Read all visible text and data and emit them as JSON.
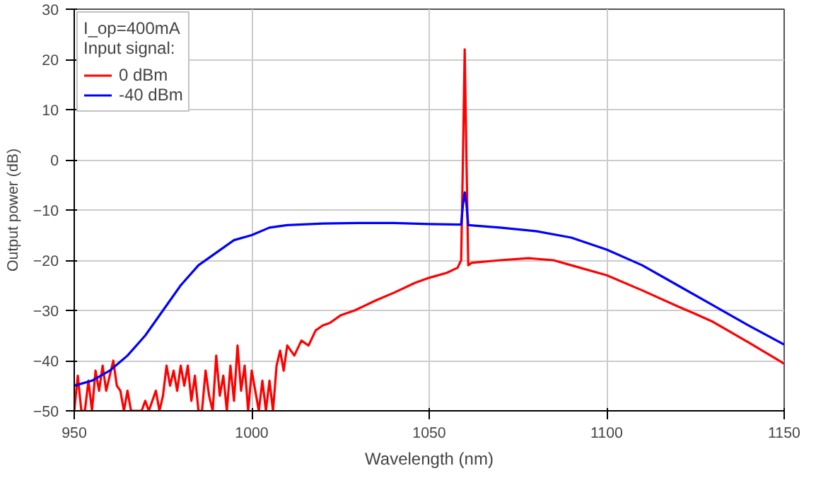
{
  "chart_data": {
    "type": "line",
    "xlabel": "Wavelength (nm)",
    "ylabel": "Output power (dB)",
    "legend_title": "I_op=400mA\nInput signal:",
    "xlim": [
      950,
      1150
    ],
    "xticks": [
      950,
      1000,
      1050,
      1100,
      1150
    ],
    "ylim": [
      -50,
      30
    ],
    "yticks": [
      -50,
      -40,
      -30,
      -20,
      -10,
      0,
      10,
      20,
      30
    ],
    "grid": true,
    "legend": "top left",
    "marker": "none",
    "line_style": "solid",
    "series": [
      {
        "name": "0 dBm",
        "color": "#ff0000",
        "x": [
          950,
          951,
          952,
          953,
          954,
          955,
          956,
          957,
          958,
          959,
          960,
          961,
          962,
          963,
          964,
          965,
          966,
          969,
          970,
          971,
          973,
          974,
          975,
          976,
          977,
          978,
          979,
          980,
          981,
          982,
          983,
          984,
          985,
          986,
          987,
          988,
          989,
          990,
          991,
          992,
          993,
          994,
          995,
          996,
          997,
          998,
          999,
          1000,
          1001,
          1002,
          1003,
          1004,
          1005,
          1006,
          1007,
          1008,
          1009,
          1010,
          1012,
          1014,
          1016,
          1018,
          1020,
          1022,
          1025,
          1029,
          1035,
          1040,
          1046,
          1050,
          1055,
          1058,
          1059,
          1059.5,
          1060,
          1060.5,
          1061,
          1062,
          1070,
          1078,
          1085,
          1090,
          1100,
          1110,
          1120,
          1125,
          1130,
          1140,
          1150
        ],
        "values": [
          -50,
          -43,
          -50,
          -50,
          -44,
          -50,
          -42,
          -46,
          -41,
          -46,
          -43,
          -40,
          -45,
          -46,
          -50,
          -46,
          -50,
          -50,
          -48,
          -50,
          -46,
          -50,
          -47,
          -41,
          -45,
          -42,
          -46,
          -41,
          -45,
          -41,
          -48,
          -43,
          -50,
          -50,
          -42,
          -47,
          -50,
          -39,
          -47,
          -43,
          -50,
          -41,
          -48,
          -37,
          -46,
          -41,
          -50,
          -42,
          -46,
          -50,
          -44,
          -50,
          -44,
          -50,
          -41,
          -38,
          -42,
          -37,
          -39,
          -36,
          -37,
          -34,
          -33,
          -32.5,
          -31,
          -30,
          -28,
          -26.5,
          -24.5,
          -23.5,
          -22.5,
          -21.5,
          -20,
          0,
          22,
          0,
          -21,
          -20.5,
          -20,
          -19.6,
          -20,
          -21,
          -23,
          -26,
          -29.2,
          -30.7,
          -32.3,
          -36.4,
          -40.6
        ]
      },
      {
        "name": "-40 dBm",
        "color": "#0000ff",
        "x": [
          950,
          955,
          960,
          965,
          970,
          975,
          980,
          985,
          990,
          995,
          1000,
          1005,
          1010,
          1020,
          1030,
          1040,
          1050,
          1059,
          1059.5,
          1060,
          1060.5,
          1061,
          1070,
          1080,
          1090,
          1100,
          1110,
          1120,
          1130,
          1140,
          1150
        ],
        "values": [
          -45,
          -44,
          -42,
          -39,
          -35,
          -30,
          -25,
          -21,
          -18.5,
          -16,
          -15,
          -13.5,
          -13,
          -12.7,
          -12.6,
          -12.6,
          -12.8,
          -12.9,
          -9,
          -6.5,
          -9,
          -13,
          -13.5,
          -14.2,
          -15.5,
          -17.9,
          -21,
          -25,
          -29,
          -33,
          -36.8
        ]
      }
    ]
  }
}
